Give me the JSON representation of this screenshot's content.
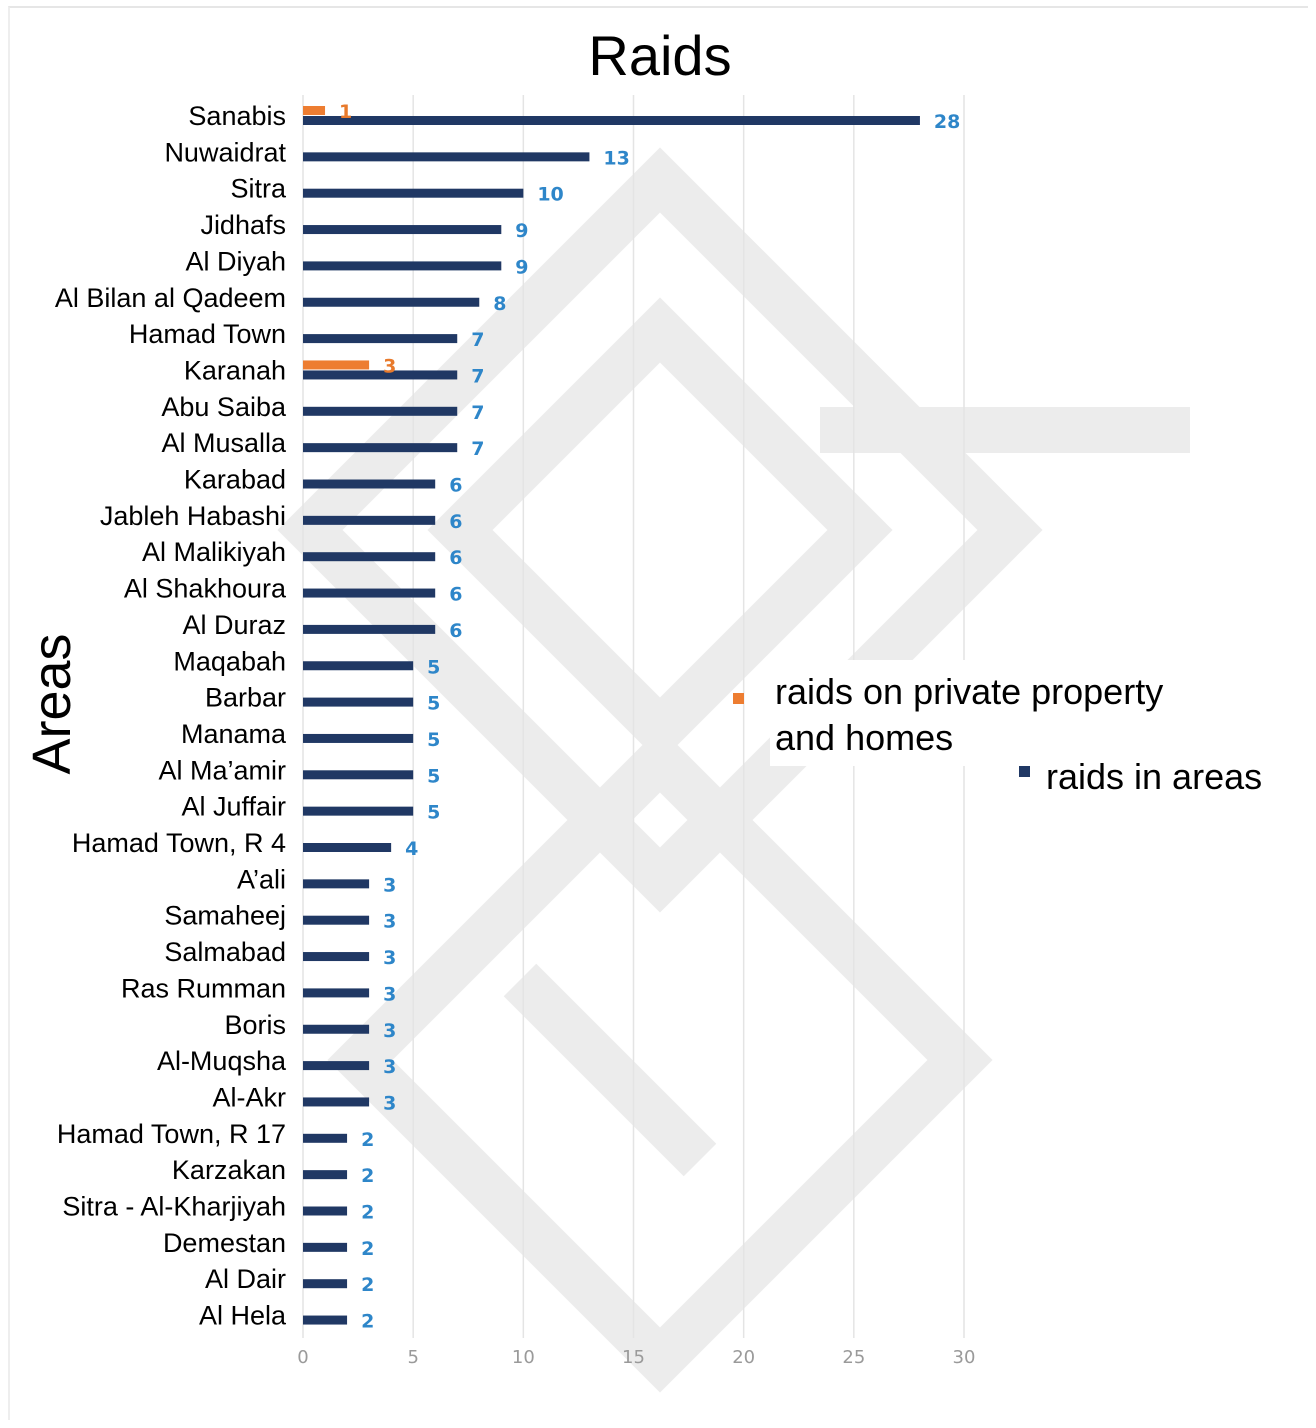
{
  "chart_data": {
    "type": "bar",
    "orientation": "horizontal",
    "title": "Raids",
    "ylabel": "Areas",
    "xlabel": "",
    "xlim": [
      0,
      30
    ],
    "xticks": [
      0,
      5,
      10,
      15,
      20,
      25,
      30
    ],
    "grid": true,
    "legend_position": "right",
    "categories": [
      "Sanabis",
      "Nuwaidrat",
      "Sitra",
      "Jidhafs",
      "Al Diyah",
      "Al Bilan al Qadeem",
      "Hamad Town",
      "Karanah",
      "Abu Saiba",
      "Al Musalla",
      "Karabad",
      "Jableh Habashi",
      "Al Malikiyah",
      "Al Shakhoura",
      "Al Duraz",
      "Maqabah",
      "Barbar",
      "Manama",
      "Al Ma’amir",
      "Al Juffair",
      "Hamad Town, R 4",
      "A’ali",
      "Samaheej",
      "Salmabad",
      "Ras Rumman",
      "Boris",
      "Al-Muqsha",
      "Al-Akr",
      "Hamad Town, R 17",
      "Karzakan",
      "Sitra - Al-Kharjiyah",
      "Demestan",
      "Al Dair",
      "Al Hela"
    ],
    "series": [
      {
        "name": "raids on private property and homes",
        "color": "#ed7d31",
        "values": [
          1,
          null,
          null,
          null,
          null,
          null,
          null,
          3,
          null,
          null,
          null,
          null,
          null,
          null,
          null,
          null,
          null,
          null,
          null,
          null,
          null,
          null,
          null,
          null,
          null,
          null,
          null,
          null,
          null,
          null,
          null,
          null,
          null,
          null
        ]
      },
      {
        "name": "raids in areas",
        "color": "#203864",
        "values": [
          28,
          13,
          10,
          9,
          9,
          8,
          7,
          7,
          7,
          7,
          6,
          6,
          6,
          6,
          6,
          5,
          5,
          5,
          5,
          5,
          4,
          3,
          3,
          3,
          3,
          3,
          3,
          3,
          2,
          2,
          2,
          2,
          2,
          2
        ]
      }
    ]
  }
}
